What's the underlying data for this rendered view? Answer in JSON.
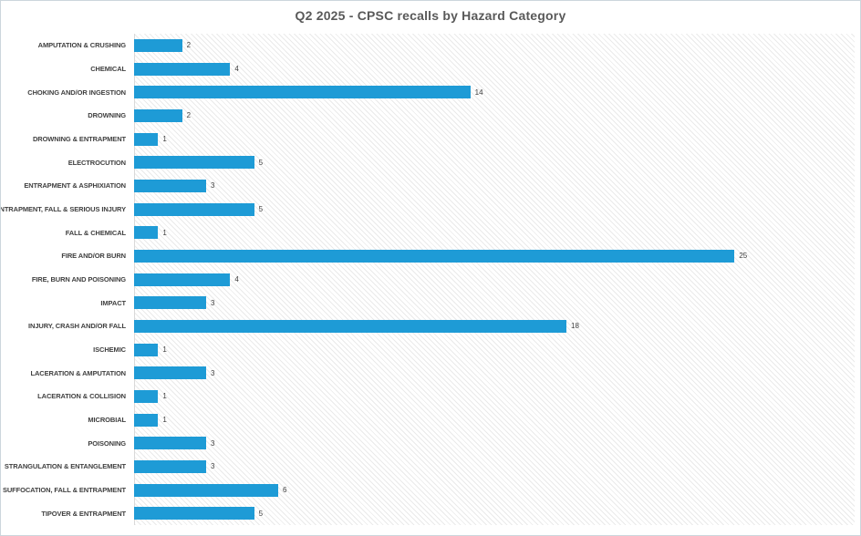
{
  "chart_data": {
    "type": "bar",
    "orientation": "horizontal",
    "title": "Q2 2025 - CPSC recalls by Hazard Category",
    "xlabel": "",
    "ylabel": "",
    "xlim": [
      0,
      30
    ],
    "grid": false,
    "legend": false,
    "data_labels": true,
    "bar_color": "#1e9bd6",
    "title_color": "#595959",
    "label_color": "#3f3f3f",
    "plot_hatch": "light-diagonal",
    "categories": [
      "AMPUTATION & CRUSHING",
      "CHEMICAL",
      "CHOKING AND/OR INGESTION",
      "DROWNING",
      "DROWNING & ENTRAPMENT",
      "ELECTROCUTION",
      "ENTRAPMENT & ASPHIXIATION",
      "ENTRAPMENT, FALL & SERIOUS INJURY",
      "FALL & CHEMICAL",
      "FIRE AND/OR BURN",
      "FIRE, BURN AND POISONING",
      "IMPACT",
      "INJURY, CRASH AND/OR FALL",
      "ISCHEMIC",
      "LACERATION & AMPUTATION",
      "LACERATION & COLLISION",
      "MICROBIAL",
      "POISONING",
      "STRANGULATION & ENTANGLEMENT",
      "SUFFOCATION, FALL & ENTRAPMENT",
      "TIPOVER & ENTRAPMENT"
    ],
    "values": [
      2,
      4,
      14,
      2,
      1,
      5,
      3,
      5,
      1,
      25,
      4,
      3,
      18,
      1,
      3,
      1,
      1,
      3,
      3,
      6,
      5
    ]
  }
}
